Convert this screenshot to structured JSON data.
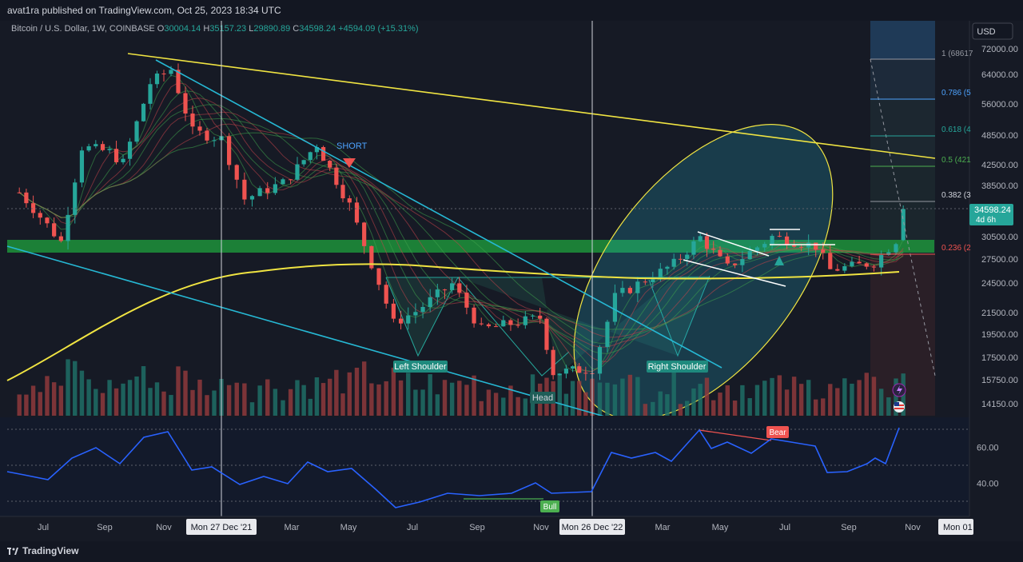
{
  "header": {
    "published": "avat1ra published on TradingView.com, Oct 25, 2023 18:34 UTC"
  },
  "legend": {
    "symbol": "Bitcoin / U.S. Dollar, 1W, COINBASE",
    "open_label": "O",
    "open": "30004.14",
    "high_label": "H",
    "high": "35157.23",
    "low_label": "L",
    "low": "29890.89",
    "close_label": "C",
    "close": "34598.24",
    "change": "+4594.09 (+15.31%)"
  },
  "price_axis": {
    "currency": "USD",
    "ticks": [
      "72000.00",
      "64000.00",
      "56000.00",
      "48500.00",
      "42500.00",
      "38500.00",
      "30500.00",
      "27500.00",
      "24500.00",
      "21500.00",
      "19500.00",
      "17500.00",
      "15750.00",
      "14150.00"
    ],
    "last_price": "34598.24",
    "countdown": "4d 6h"
  },
  "rsi_axis": {
    "ticks": [
      "60.00",
      "40.00"
    ]
  },
  "time_axis": {
    "ticks": [
      "Jul",
      "Sep",
      "Nov",
      "Mar",
      "May",
      "Jul",
      "Sep",
      "Nov",
      "Mar",
      "May",
      "Jul",
      "Sep",
      "Nov"
    ],
    "crosshair_1": "Mon 27 Dec '21",
    "crosshair_2": "Mon 26 Dec '22",
    "right_label": "Mon 01"
  },
  "fib_levels": [
    {
      "ratio": "1",
      "text": "1 (68617"
    },
    {
      "ratio": "0.786",
      "text": "0.786 (5"
    },
    {
      "ratio": "0.618",
      "text": "0.618 (4"
    },
    {
      "ratio": "0.5",
      "text": "0.5 (421"
    },
    {
      "ratio": "0.382",
      "text": "0.382 (3"
    },
    {
      "ratio": "0.236",
      "text": "0.236 (2"
    }
  ],
  "annotations": {
    "short": "SHORT",
    "left_shoulder": "Left Shoulder",
    "head": "Head",
    "right_shoulder": "Right Shoulder",
    "bear": "Bear",
    "bull": "Bull"
  },
  "colors": {
    "up": "#26a69a",
    "down": "#ef5350",
    "yellow": "#f0e442",
    "cyan": "#26b8d4",
    "green_zone": "#1e9a3c",
    "rsi_line": "#2962ff",
    "fib_label": "#4da3ff"
  },
  "footer": {
    "brand": "TradingView"
  },
  "chart_data": {
    "type": "candlestick",
    "title": "Bitcoin / U.S. Dollar, 1W, COINBASE",
    "last_ohlc": {
      "open": 30004.14,
      "high": 35157.23,
      "low": 29890.89,
      "close": 34598.24
    },
    "ylim": [
      13500,
      76000
    ],
    "y_scale": "log",
    "close_path": [
      {
        "date": "2021-06-07",
        "close": 37300
      },
      {
        "date": "2021-06-21",
        "close": 34700
      },
      {
        "date": "2021-07-19",
        "close": 29800
      },
      {
        "date": "2021-08-09",
        "close": 46000
      },
      {
        "date": "2021-09-06",
        "close": 45000
      },
      {
        "date": "2021-09-20",
        "close": 42800
      },
      {
        "date": "2021-10-18",
        "close": 61500
      },
      {
        "date": "2021-11-08",
        "close": 65500
      },
      {
        "date": "2021-11-29",
        "close": 49300
      },
      {
        "date": "2021-12-27",
        "close": 47700
      },
      {
        "date": "2022-01-17",
        "close": 36200
      },
      {
        "date": "2022-02-21",
        "close": 39000
      },
      {
        "date": "2022-03-28",
        "close": 46600
      },
      {
        "date": "2022-05-02",
        "close": 35200
      },
      {
        "date": "2022-06-13",
        "close": 20500
      },
      {
        "date": "2022-07-04",
        "close": 21600
      },
      {
        "date": "2022-08-08",
        "close": 24400
      },
      {
        "date": "2022-09-05",
        "close": 19900
      },
      {
        "date": "2022-10-31",
        "close": 21000
      },
      {
        "date": "2022-11-14",
        "close": 16300
      },
      {
        "date": "2022-12-26",
        "close": 16600
      },
      {
        "date": "2023-01-16",
        "close": 23000
      },
      {
        "date": "2023-03-13",
        "close": 26900
      },
      {
        "date": "2023-04-10",
        "close": 30400
      },
      {
        "date": "2023-05-08",
        "close": 26400
      },
      {
        "date": "2023-06-19",
        "close": 30500
      },
      {
        "date": "2023-07-31",
        "close": 29200
      },
      {
        "date": "2023-08-14",
        "close": 26100
      },
      {
        "date": "2023-09-25",
        "close": 27000
      },
      {
        "date": "2023-10-16",
        "close": 30000
      },
      {
        "date": "2023-10-23",
        "close": 34598
      }
    ],
    "rsi": {
      "ylim": [
        20,
        80
      ],
      "upper": 70,
      "lower": 30
    },
    "series": [
      {
        "name": "Price",
        "type": "candles"
      },
      {
        "name": "Volume",
        "type": "bars"
      },
      {
        "name": "RSI",
        "type": "line"
      }
    ]
  }
}
